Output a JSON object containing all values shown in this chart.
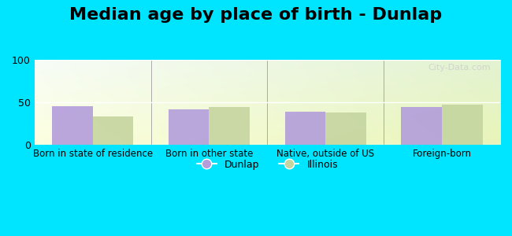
{
  "title": "Median age by place of birth - Dunlap",
  "categories": [
    "Born in state of residence",
    "Born in other state",
    "Native, outside of US",
    "Foreign-born"
  ],
  "dunlap_values": [
    45,
    42,
    39,
    44
  ],
  "illinois_values": [
    33,
    44,
    38,
    47
  ],
  "dunlap_color": "#b39ddb",
  "illinois_color": "#c5d5a0",
  "background_outer": "#00e5ff",
  "ylim": [
    0,
    100
  ],
  "yticks": [
    0,
    50,
    100
  ],
  "legend_dunlap": "Dunlap",
  "legend_illinois": "Illinois",
  "title_fontsize": 16,
  "bar_width": 0.35
}
